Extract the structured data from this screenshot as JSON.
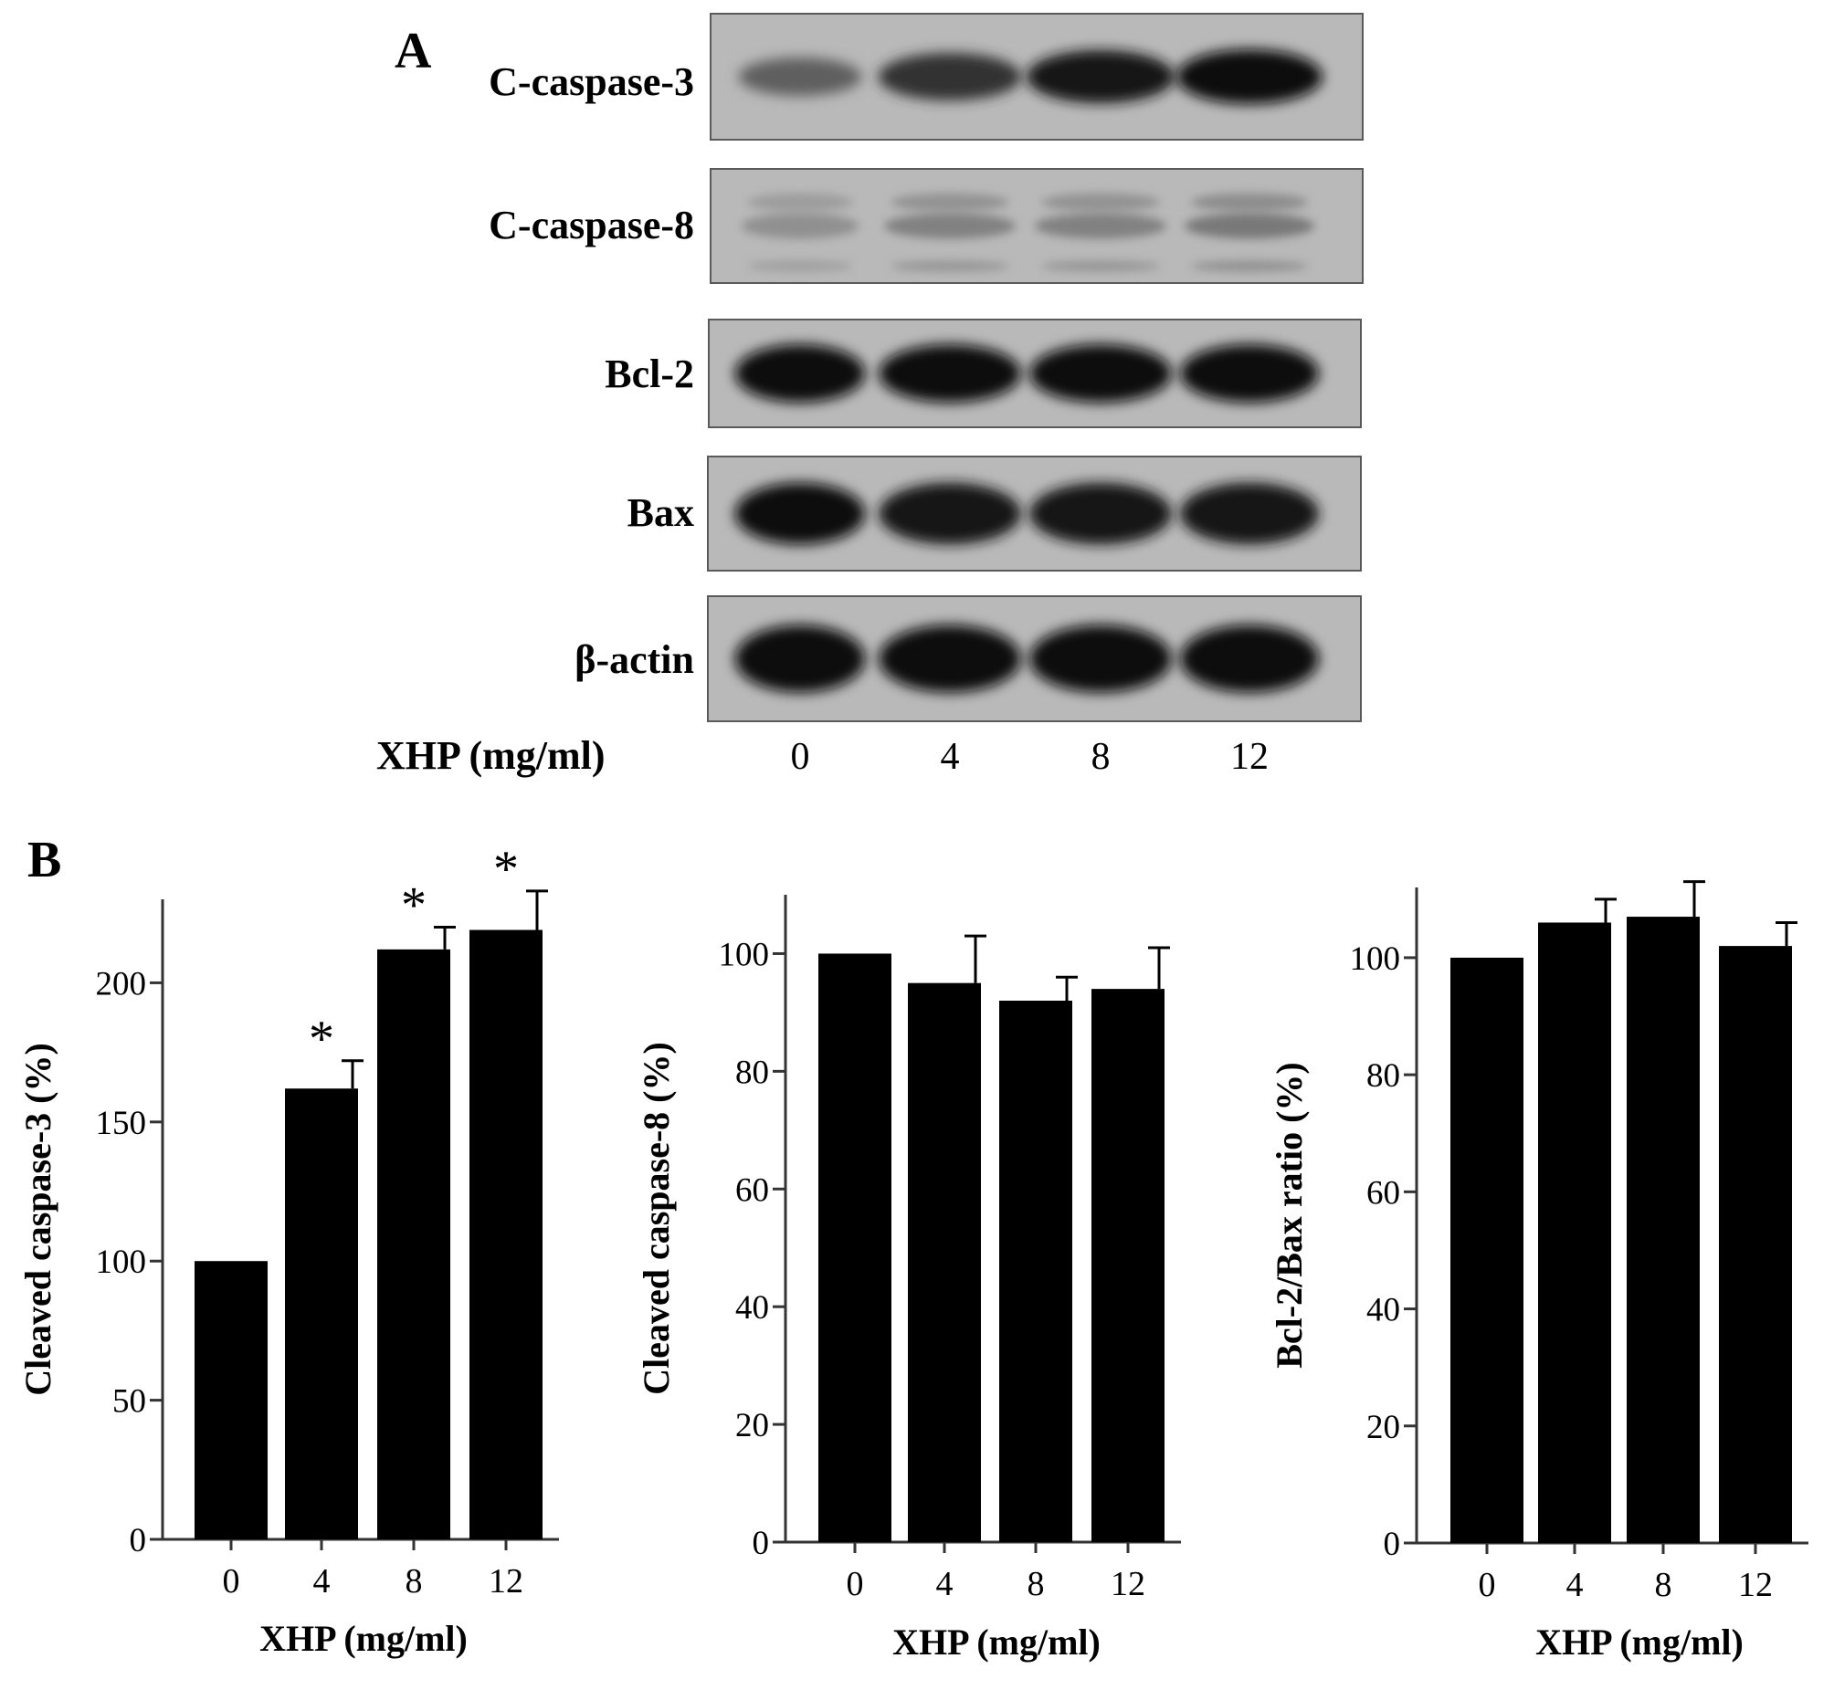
{
  "panel_a": {
    "label": "A",
    "blots": [
      {
        "label": "C-caspase-3",
        "pattern": "caspase3",
        "intensities": [
          0.55,
          0.8,
          0.95,
          1.0
        ]
      },
      {
        "label": "C-caspase-8",
        "pattern": "caspase8",
        "intensities": [
          0.35,
          0.45,
          0.45,
          0.5
        ]
      },
      {
        "label": "Bcl-2",
        "pattern": "thick",
        "intensities": [
          1.0,
          1.0,
          1.0,
          1.0
        ]
      },
      {
        "label": "Bax",
        "pattern": "thick",
        "intensities": [
          1.0,
          0.95,
          0.95,
          0.95
        ]
      },
      {
        "label": "β-actin",
        "pattern": "thick",
        "intensities": [
          1.0,
          1.0,
          1.0,
          1.0
        ]
      }
    ],
    "dose_axis_label": "XHP (mg/ml)",
    "doses": [
      "0",
      "4",
      "8",
      "12"
    ]
  },
  "panel_b_label": "B",
  "chart_data": [
    {
      "type": "bar",
      "categories": [
        "0",
        "4",
        "8",
        "12"
      ],
      "values": [
        100,
        162,
        212,
        219
      ],
      "errors": [
        0,
        10,
        8,
        14
      ],
      "significance": [
        "",
        "*",
        "*",
        "*"
      ],
      "xlabel": "XHP (mg/ml)",
      "ylabel": "Cleaved caspase-3 (%)",
      "ylim": [
        0,
        230
      ],
      "yticks": [
        0,
        50,
        100,
        150,
        200
      ],
      "grid": false
    },
    {
      "type": "bar",
      "categories": [
        "0",
        "4",
        "8",
        "12"
      ],
      "values": [
        100,
        95,
        92,
        94
      ],
      "errors": [
        0,
        8,
        4,
        7
      ],
      "significance": [
        "",
        "",
        "",
        ""
      ],
      "xlabel": "XHP (mg/ml)",
      "ylabel": "Cleaved caspase-8 (%)",
      "ylim": [
        0,
        110
      ],
      "yticks": [
        0,
        20,
        40,
        60,
        80,
        100
      ],
      "grid": false
    },
    {
      "type": "bar",
      "categories": [
        "0",
        "4",
        "8",
        "12"
      ],
      "values": [
        100,
        106,
        107,
        102
      ],
      "errors": [
        0,
        4,
        6,
        4
      ],
      "significance": [
        "",
        "",
        "",
        ""
      ],
      "xlabel": "XHP (mg/ml)",
      "ylabel": "Bcl-2/Bax ratio (%)",
      "ylim": [
        0,
        112
      ],
      "yticks": [
        0,
        20,
        40,
        60,
        80,
        100
      ],
      "grid": false
    }
  ]
}
